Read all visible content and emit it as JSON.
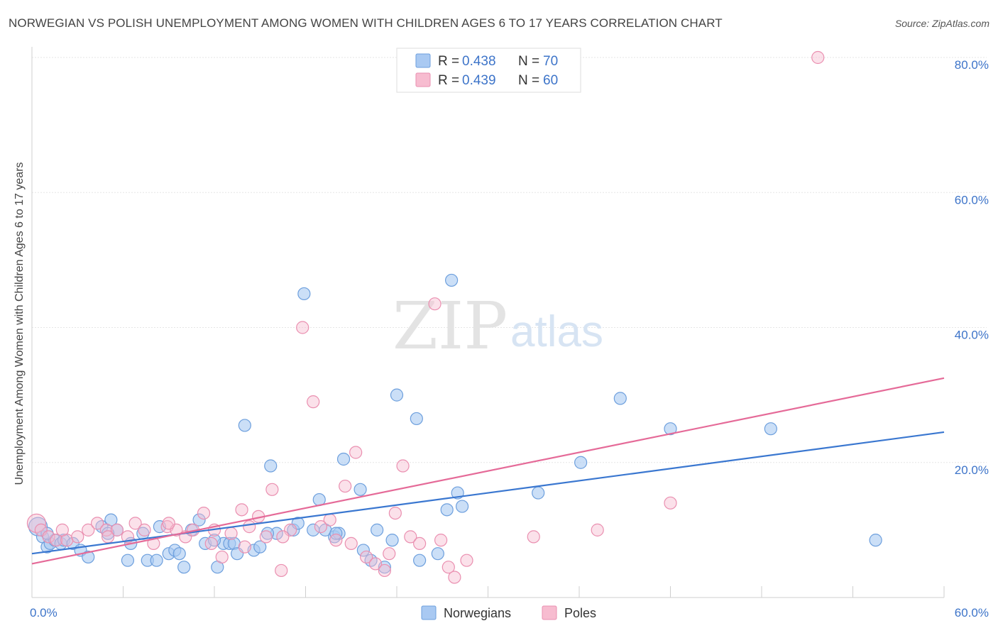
{
  "title": "NORWEGIAN VS POLISH UNEMPLOYMENT AMONG WOMEN WITH CHILDREN AGES 6 TO 17 YEARS CORRELATION CHART",
  "source": "Source: ZipAtlas.com",
  "watermark": {
    "zip": "ZIP",
    "atlas": "atlas"
  },
  "legend": {
    "r_label": "R =",
    "n_label": "N =",
    "rows": [
      {
        "name": "Norwegians",
        "r": "0.438",
        "n": "70"
      },
      {
        "name": "Poles",
        "r": "0.439",
        "n": "60"
      }
    ]
  },
  "colors": {
    "norwegians_fill": "#a9c9f2",
    "norwegians_stroke": "#6d9fdd",
    "norwegians_line": "#3a77d0",
    "poles_fill": "#f7bcd0",
    "poles_stroke": "#ea8fb0",
    "poles_line": "#e56a98",
    "tick_label": "#3d74c9",
    "grid": "#e6e6e6"
  },
  "chart_data": {
    "type": "scatter",
    "title": "NORWEGIAN VS POLISH UNEMPLOYMENT AMONG WOMEN WITH CHILDREN AGES 6 TO 17 YEARS CORRELATION CHART",
    "xlabel": "",
    "ylabel": "Unemployment Among Women with Children Ages 6 to 17 years",
    "xlim": [
      0,
      60
    ],
    "ylim": [
      0,
      80
    ],
    "x_tick_labels": [
      "0.0%",
      "60.0%"
    ],
    "y_tick_labels": [
      "20.0%",
      "40.0%",
      "60.0%",
      "80.0%"
    ],
    "y_ticks": [
      20,
      40,
      60,
      80
    ],
    "grid": true,
    "legend_position": "top-center",
    "series": [
      {
        "name": "Norwegians",
        "r": 0.438,
        "n": 70,
        "trend": [
          [
            0,
            6.5
          ],
          [
            60,
            24.5
          ]
        ],
        "points": [
          [
            0.4,
            10.5
          ],
          [
            0.7,
            9.0
          ],
          [
            1.0,
            7.5
          ],
          [
            1.2,
            8.0
          ],
          [
            1.5,
            8.5
          ],
          [
            1.9,
            8.0
          ],
          [
            2.1,
            8.5
          ],
          [
            2.7,
            8.0
          ],
          [
            3.2,
            7.0
          ],
          [
            3.7,
            6.0
          ],
          [
            4.6,
            10.5
          ],
          [
            5.2,
            11.5
          ],
          [
            5.6,
            10.0
          ],
          [
            6.3,
            5.5
          ],
          [
            7.3,
            9.5
          ],
          [
            7.6,
            5.5
          ],
          [
            8.2,
            5.5
          ],
          [
            8.4,
            10.5
          ],
          [
            9.0,
            6.5
          ],
          [
            9.4,
            7.0
          ],
          [
            9.7,
            6.5
          ],
          [
            10.0,
            4.5
          ],
          [
            10.5,
            10.0
          ],
          [
            11.0,
            11.5
          ],
          [
            11.4,
            8.0
          ],
          [
            12.2,
            4.5
          ],
          [
            12.6,
            8.0
          ],
          [
            13.0,
            8.0
          ],
          [
            13.3,
            8.0
          ],
          [
            13.5,
            6.5
          ],
          [
            14.0,
            25.5
          ],
          [
            14.6,
            7.0
          ],
          [
            15.0,
            7.5
          ],
          [
            15.7,
            19.5
          ],
          [
            16.1,
            9.5
          ],
          [
            17.2,
            10.0
          ],
          [
            17.5,
            11.0
          ],
          [
            17.9,
            45.0
          ],
          [
            18.5,
            10.0
          ],
          [
            18.9,
            14.5
          ],
          [
            19.3,
            10.0
          ],
          [
            19.9,
            9.0
          ],
          [
            20.2,
            9.5
          ],
          [
            20.5,
            20.5
          ],
          [
            21.6,
            16.0
          ],
          [
            21.8,
            7.0
          ],
          [
            22.3,
            5.5
          ],
          [
            22.7,
            10.0
          ],
          [
            23.2,
            4.5
          ],
          [
            23.7,
            8.5
          ],
          [
            24.0,
            30.0
          ],
          [
            25.3,
            26.5
          ],
          [
            25.5,
            5.5
          ],
          [
            26.7,
            6.5
          ],
          [
            27.3,
            13.0
          ],
          [
            27.6,
            47.0
          ],
          [
            28.0,
            15.5
          ],
          [
            28.3,
            13.5
          ],
          [
            33.3,
            15.5
          ],
          [
            36.1,
            20.0
          ],
          [
            38.7,
            29.5
          ],
          [
            42.0,
            25.0
          ],
          [
            48.6,
            25.0
          ],
          [
            55.5,
            8.5
          ],
          [
            1.0,
            9.5
          ],
          [
            20.0,
            9.5
          ],
          [
            6.5,
            8.0
          ],
          [
            15.5,
            9.5
          ],
          [
            12.0,
            8.5
          ],
          [
            5.0,
            9.5
          ]
        ]
      },
      {
        "name": "Poles",
        "r": 0.439,
        "n": 60,
        "trend": [
          [
            0,
            5.0
          ],
          [
            60,
            32.5
          ]
        ],
        "points": [
          [
            0.3,
            11.0
          ],
          [
            0.6,
            10.0
          ],
          [
            1.1,
            9.0
          ],
          [
            1.6,
            8.5
          ],
          [
            2.3,
            8.5
          ],
          [
            3.0,
            9.0
          ],
          [
            3.7,
            10.0
          ],
          [
            4.3,
            11.0
          ],
          [
            4.9,
            10.0
          ],
          [
            5.6,
            10.0
          ],
          [
            6.3,
            9.0
          ],
          [
            6.8,
            11.0
          ],
          [
            7.4,
            10.0
          ],
          [
            8.0,
            8.0
          ],
          [
            8.9,
            10.5
          ],
          [
            9.5,
            10.0
          ],
          [
            10.1,
            9.0
          ],
          [
            10.6,
            10.0
          ],
          [
            11.3,
            12.5
          ],
          [
            12.0,
            10.0
          ],
          [
            12.5,
            6.0
          ],
          [
            13.1,
            9.5
          ],
          [
            13.8,
            13.0
          ],
          [
            14.3,
            10.5
          ],
          [
            14.9,
            12.0
          ],
          [
            15.4,
            9.0
          ],
          [
            15.8,
            16.0
          ],
          [
            16.4,
            4.0
          ],
          [
            17.0,
            10.0
          ],
          [
            17.8,
            40.0
          ],
          [
            18.5,
            29.0
          ],
          [
            19.6,
            11.5
          ],
          [
            20.0,
            8.5
          ],
          [
            20.6,
            16.5
          ],
          [
            21.3,
            21.5
          ],
          [
            22.0,
            6.0
          ],
          [
            22.6,
            5.0
          ],
          [
            23.2,
            4.0
          ],
          [
            23.9,
            12.5
          ],
          [
            24.4,
            19.5
          ],
          [
            24.9,
            9.0
          ],
          [
            26.5,
            43.5
          ],
          [
            26.9,
            8.5
          ],
          [
            27.4,
            4.5
          ],
          [
            27.8,
            3.0
          ],
          [
            28.6,
            5.5
          ],
          [
            33.0,
            9.0
          ],
          [
            37.2,
            10.0
          ],
          [
            42.0,
            14.0
          ],
          [
            51.7,
            80.0
          ],
          [
            2.0,
            10.0
          ],
          [
            5.0,
            9.0
          ],
          [
            9.0,
            11.0
          ],
          [
            11.8,
            8.0
          ],
          [
            14.0,
            7.5
          ],
          [
            16.5,
            9.0
          ],
          [
            19.0,
            10.5
          ],
          [
            21.0,
            8.0
          ],
          [
            23.5,
            6.5
          ],
          [
            25.5,
            8.0
          ]
        ]
      }
    ]
  }
}
